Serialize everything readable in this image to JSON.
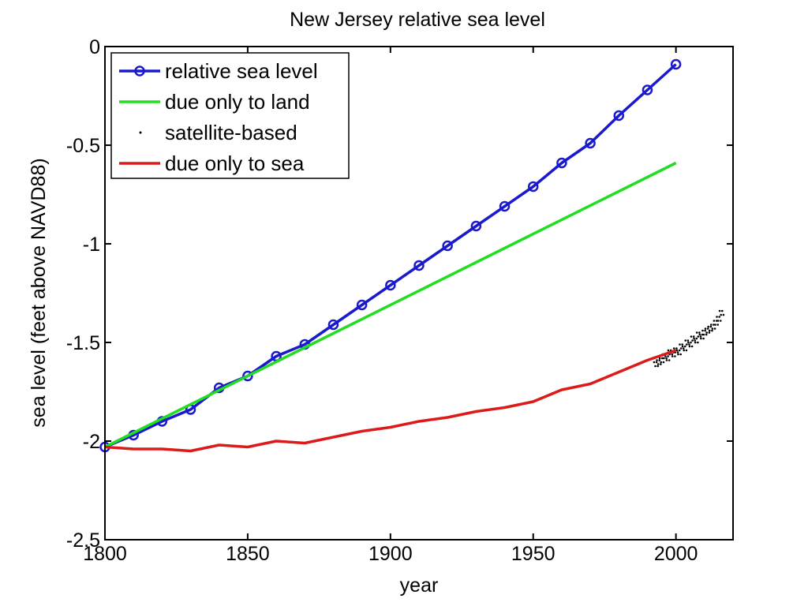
{
  "chart_data": {
    "type": "line",
    "title": "New Jersey relative sea level",
    "xlabel": "year",
    "ylabel": "sea level (feet above NAVD88)",
    "xlim": [
      1800,
      2020
    ],
    "ylim": [
      -2.5,
      0
    ],
    "x_ticks": [
      {
        "value": 1800,
        "label": "1800"
      },
      {
        "value": 1850,
        "label": "1850"
      },
      {
        "value": 1900,
        "label": "1900"
      },
      {
        "value": 1950,
        "label": "1950"
      },
      {
        "value": 2000,
        "label": "2000"
      }
    ],
    "y_ticks": [
      {
        "value": 0,
        "label": "0"
      },
      {
        "value": -0.5,
        "label": "-0.5"
      },
      {
        "value": -1,
        "label": "-1"
      },
      {
        "value": -1.5,
        "label": "-1.5"
      },
      {
        "value": -2,
        "label": "-2"
      },
      {
        "value": -2.5,
        "label": "-2.5"
      }
    ],
    "grid": false,
    "legend_position": "top-left",
    "series": [
      {
        "name": "relative sea level",
        "style": "line-markers",
        "color": "#1a1acc",
        "x": [
          1800,
          1810,
          1820,
          1830,
          1840,
          1850,
          1860,
          1870,
          1880,
          1890,
          1900,
          1910,
          1920,
          1930,
          1940,
          1950,
          1960,
          1970,
          1980,
          1990,
          2000
        ],
        "y": [
          -2.03,
          -1.97,
          -1.9,
          -1.84,
          -1.73,
          -1.67,
          -1.57,
          -1.51,
          -1.41,
          -1.31,
          -1.21,
          -1.11,
          -1.01,
          -0.91,
          -0.81,
          -0.71,
          -0.59,
          -0.49,
          -0.35,
          -0.22,
          -0.09
        ]
      },
      {
        "name": "due only to land",
        "style": "line",
        "color": "#22dd22",
        "x": [
          1800,
          2000
        ],
        "y": [
          -2.03,
          -0.59
        ]
      },
      {
        "name": "satellite-based",
        "style": "dots",
        "color": "#000000",
        "x": [
          1993,
          1994,
          1995,
          1996,
          1997,
          1998,
          1999,
          2000,
          2001,
          2002,
          2003,
          2004,
          2005,
          2006,
          2007,
          2008,
          2009,
          2010,
          2011,
          2012,
          2013,
          2014,
          2015,
          2016
        ],
        "y": [
          -1.61,
          -1.6,
          -1.59,
          -1.57,
          -1.58,
          -1.55,
          -1.56,
          -1.54,
          -1.55,
          -1.52,
          -1.53,
          -1.5,
          -1.51,
          -1.48,
          -1.49,
          -1.46,
          -1.47,
          -1.45,
          -1.44,
          -1.43,
          -1.42,
          -1.4,
          -1.38,
          -1.35
        ]
      },
      {
        "name": "due only to sea",
        "style": "line",
        "color": "#dd1a1a",
        "x": [
          1800,
          1810,
          1820,
          1830,
          1840,
          1850,
          1860,
          1870,
          1880,
          1890,
          1900,
          1910,
          1920,
          1930,
          1940,
          1950,
          1960,
          1970,
          1980,
          1990,
          2000
        ],
        "y": [
          -2.03,
          -2.04,
          -2.04,
          -2.05,
          -2.02,
          -2.03,
          -2.0,
          -2.01,
          -1.98,
          -1.95,
          -1.93,
          -1.9,
          -1.88,
          -1.85,
          -1.83,
          -1.8,
          -1.74,
          -1.71,
          -1.65,
          -1.59,
          -1.54
        ]
      }
    ]
  }
}
